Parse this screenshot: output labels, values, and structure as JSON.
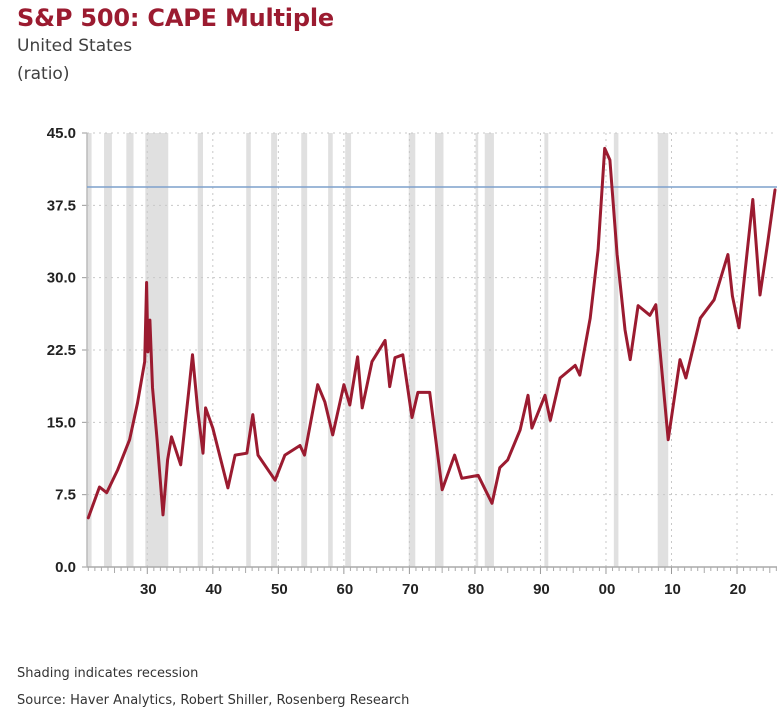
{
  "chart_data": {
    "type": "line",
    "title": "S&P 500: CAPE Multiple",
    "subtitle": "United States",
    "units": "(ratio)",
    "xlabel": "",
    "ylabel": "",
    "xlim": [
      1920.8,
      2026.1
    ],
    "ylim": [
      0,
      45
    ],
    "yticks": [
      0,
      7.5,
      15,
      22.5,
      30,
      37.5,
      45
    ],
    "ytick_labels": [
      "0.0",
      "7.5",
      "15.0",
      "22.5",
      "30.0",
      "37.5",
      "45.0"
    ],
    "xticks": [
      1930,
      1940,
      1950,
      1960,
      1970,
      1980,
      1990,
      2000,
      2010,
      2020
    ],
    "xtick_labels": [
      "30",
      "40",
      "50",
      "60",
      "70",
      "80",
      "90",
      "00",
      "10",
      "20"
    ],
    "grid": "dotted",
    "reference_line": {
      "value": 39.4,
      "color": "#7da0cc"
    },
    "recessions": [
      [
        1920.8,
        1921.5
      ],
      [
        1923.4,
        1924.6
      ],
      [
        1926.8,
        1927.9
      ],
      [
        1929.7,
        1933.2
      ],
      [
        1937.7,
        1938.5
      ],
      [
        1945.1,
        1945.8
      ],
      [
        1948.9,
        1949.8
      ],
      [
        1953.5,
        1954.4
      ],
      [
        1957.6,
        1958.3
      ],
      [
        1960.2,
        1961.1
      ],
      [
        1969.9,
        1970.9
      ],
      [
        1973.9,
        1975.2
      ],
      [
        1980.1,
        1980.5
      ],
      [
        1981.5,
        1982.9
      ],
      [
        1990.6,
        1991.2
      ],
      [
        2001.2,
        2001.9
      ],
      [
        2007.9,
        2009.5
      ]
    ],
    "series": [
      {
        "name": "S&P 500 CAPE",
        "color": "#9b1b30",
        "x": [
          1921.0,
          1922.7,
          1923.8,
          1925.5,
          1927.3,
          1928.5,
          1929.6,
          1929.9,
          1930.1,
          1930.4,
          1930.8,
          1931.5,
          1932.4,
          1933.1,
          1933.7,
          1935.1,
          1936.3,
          1936.9,
          1937.7,
          1938.5,
          1938.9,
          1940.0,
          1942.3,
          1943.4,
          1945.2,
          1946.1,
          1946.9,
          1949.5,
          1951.0,
          1953.3,
          1954.0,
          1956.0,
          1957.1,
          1958.3,
          1960.0,
          1960.9,
          1962.1,
          1962.8,
          1964.3,
          1966.3,
          1967.0,
          1967.8,
          1969.0,
          1970.4,
          1971.3,
          1973.1,
          1975.0,
          1976.9,
          1978.0,
          1980.5,
          1982.6,
          1983.8,
          1985.0,
          1986.9,
          1988.1,
          1988.7,
          1990.7,
          1991.5,
          1993.0,
          1995.3,
          1996.0,
          1997.6,
          1998.8,
          1999.8,
          2000.6,
          2001.7,
          2002.9,
          2003.7,
          2004.9,
          2006.7,
          2007.6,
          2009.5,
          2011.3,
          2012.2,
          2014.4,
          2016.5,
          2018.6,
          2019.3,
          2020.3,
          2022.4,
          2023.5,
          2024.7,
          2025.8
        ],
        "values": [
          5.1,
          8.3,
          7.7,
          10.1,
          13.2,
          17.0,
          21.3,
          29.5,
          22.3,
          25.6,
          18.6,
          13.2,
          5.4,
          11.1,
          13.5,
          10.6,
          18.1,
          22.0,
          16.3,
          11.8,
          16.5,
          14.4,
          8.2,
          11.6,
          11.8,
          15.8,
          11.6,
          9.0,
          11.6,
          12.6,
          11.6,
          18.9,
          17.1,
          13.7,
          18.9,
          16.8,
          21.8,
          16.5,
          21.3,
          23.5,
          18.7,
          21.7,
          22.0,
          15.5,
          18.1,
          18.1,
          8.0,
          11.6,
          9.2,
          9.5,
          6.6,
          10.3,
          11.1,
          14.2,
          17.8,
          14.4,
          17.8,
          15.2,
          19.6,
          20.9,
          19.9,
          25.8,
          32.9,
          43.4,
          42.2,
          32.4,
          24.6,
          21.5,
          27.1,
          26.1,
          27.2,
          13.2,
          21.5,
          19.6,
          25.8,
          27.7,
          32.4,
          28.1,
          24.8,
          38.1,
          28.2,
          33.7,
          39.1
        ]
      }
    ]
  },
  "footer": {
    "note": "Shading indicates recession",
    "source": "Source: Haver Analytics, Robert Shiller, Rosenberg Research"
  }
}
